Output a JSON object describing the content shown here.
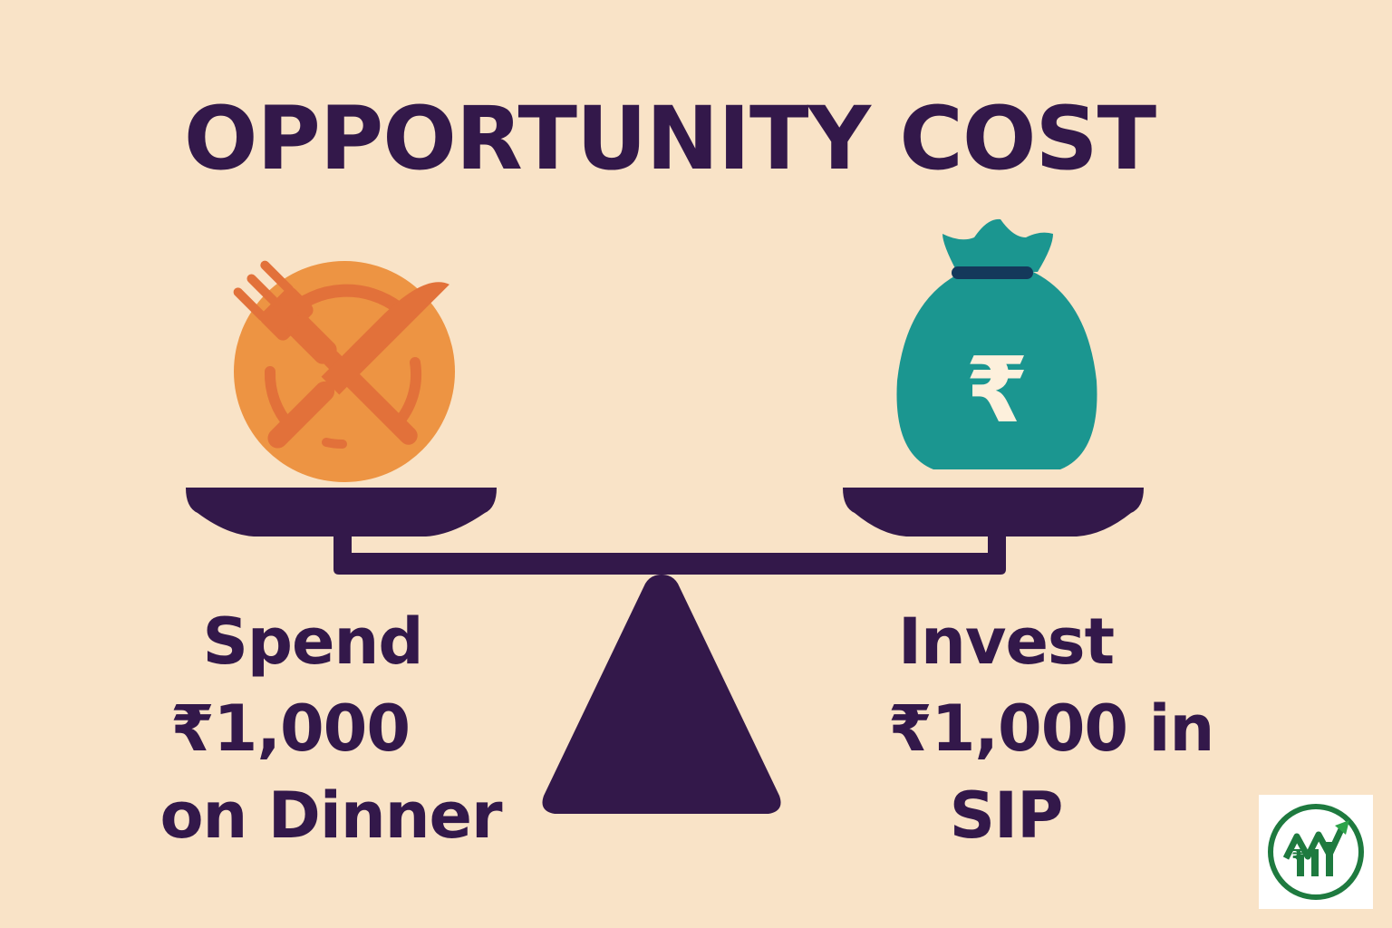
{
  "title": "OPPORTUNITY COST",
  "left_option": {
    "line1": "Spend",
    "line2": "₹1,000",
    "line3": "on Dinner",
    "icon": "plate-fork-knife-icon",
    "color": "#ed9443"
  },
  "right_option": {
    "line1": "Invest",
    "line2": "₹1,000 in",
    "line3": "SIP",
    "icon": "money-bag-rupee-icon",
    "color": "#1b9690"
  },
  "logo": {
    "icon": "brand-logo-icon",
    "color": "#1e7a3f"
  },
  "colors": {
    "background": "#f9e3c7",
    "text": "#33184a",
    "scale": "#33184a"
  }
}
